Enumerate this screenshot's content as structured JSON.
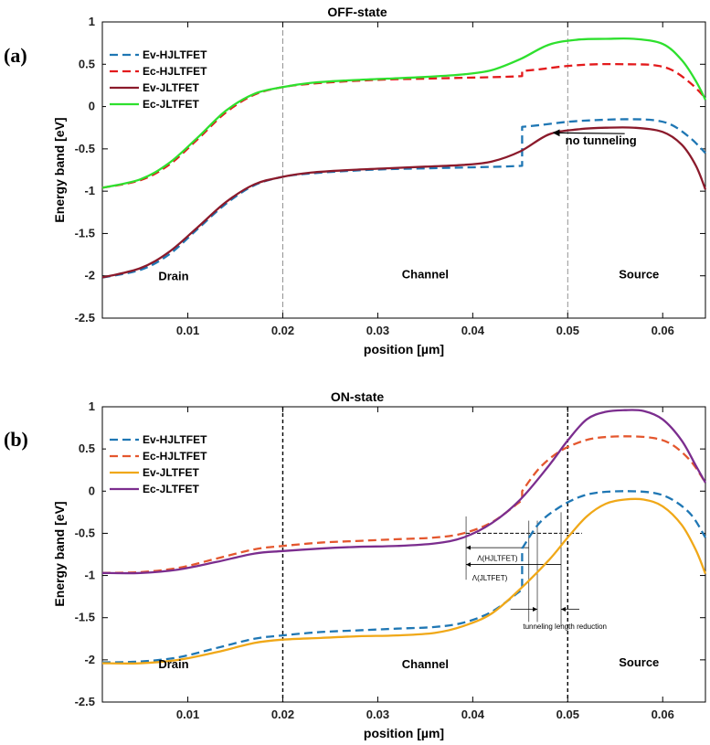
{
  "chart_data": [
    {
      "panel_label": "(a)",
      "type": "line",
      "title": "OFF-state",
      "xlabel": "position [µm]",
      "ylabel": "Energy band [eV]",
      "xlim": [
        0.001,
        0.0645
      ],
      "ylim": [
        -2.5,
        1
      ],
      "xticks": [
        "0.01",
        "0.02",
        "0.03",
        "0.04",
        "0.05",
        "0.06"
      ],
      "xtick_values": [
        0.01,
        0.02,
        0.03,
        0.04,
        0.05,
        0.06
      ],
      "yticks": [
        "-2.5",
        "-2",
        "-1.5",
        "-1",
        "-0.5",
        "0",
        "0.5",
        "1"
      ],
      "ytick_values": [
        -2.5,
        -2,
        -1.5,
        -1,
        -0.5,
        0,
        0.5,
        1
      ],
      "grid": false,
      "legend_position": "top-left",
      "vlines": [
        0.02,
        0.05
      ],
      "region_labels": [
        {
          "text": "Drain",
          "x": 0.0085,
          "y": -2.05
        },
        {
          "text": "Channel",
          "x": 0.035,
          "y": -2.03
        },
        {
          "text": "Source",
          "x": 0.0575,
          "y": -2.03
        }
      ],
      "annotation": {
        "text": "no tunneling",
        "x": 0.0535,
        "y": -0.45,
        "arrow_from": [
          0.056,
          -0.32
        ],
        "arrow_to": [
          0.0485,
          -0.31
        ]
      },
      "series": [
        {
          "name": "Ev-HJLTFET",
          "color": "#1f77b4",
          "dash": "dashed",
          "x": [
            0.001,
            0.005,
            0.008,
            0.011,
            0.014,
            0.017,
            0.02,
            0.023,
            0.027,
            0.031,
            0.035,
            0.039,
            0.043,
            0.0452,
            0.0452,
            0.047,
            0.05,
            0.053,
            0.056,
            0.059,
            0.061,
            0.063,
            0.0645
          ],
          "y": [
            -2.02,
            -1.93,
            -1.75,
            -1.45,
            -1.15,
            -0.93,
            -0.83,
            -0.79,
            -0.76,
            -0.74,
            -0.73,
            -0.72,
            -0.71,
            -0.7,
            -0.24,
            -0.22,
            -0.18,
            -0.16,
            -0.15,
            -0.16,
            -0.22,
            -0.38,
            -0.55
          ]
        },
        {
          "name": "Ec-HJLTFET",
          "color": "#e31a1c",
          "dash": "dashed",
          "x": [
            0.001,
            0.005,
            0.008,
            0.011,
            0.014,
            0.017,
            0.02,
            0.023,
            0.027,
            0.031,
            0.035,
            0.039,
            0.043,
            0.0452,
            0.0452,
            0.047,
            0.05,
            0.053,
            0.056,
            0.059,
            0.061,
            0.063,
            0.0645
          ],
          "y": [
            -0.96,
            -0.87,
            -0.69,
            -0.39,
            -0.07,
            0.14,
            0.23,
            0.27,
            0.3,
            0.32,
            0.33,
            0.34,
            0.35,
            0.36,
            0.42,
            0.44,
            0.48,
            0.5,
            0.5,
            0.49,
            0.43,
            0.27,
            0.1
          ]
        },
        {
          "name": "Ev-JLTFET",
          "color": "#8b1a2b",
          "dash": "solid",
          "x": [
            0.001,
            0.005,
            0.008,
            0.011,
            0.014,
            0.017,
            0.02,
            0.023,
            0.027,
            0.031,
            0.035,
            0.039,
            0.042,
            0.045,
            0.048,
            0.051,
            0.054,
            0.057,
            0.06,
            0.062,
            0.0635,
            0.0645
          ],
          "y": [
            -2.02,
            -1.91,
            -1.72,
            -1.43,
            -1.13,
            -0.92,
            -0.83,
            -0.78,
            -0.75,
            -0.73,
            -0.71,
            -0.69,
            -0.65,
            -0.53,
            -0.33,
            -0.27,
            -0.25,
            -0.25,
            -0.3,
            -0.45,
            -0.7,
            -0.98
          ]
        },
        {
          "name": "Ec-JLTFET",
          "color": "#2ee02e",
          "dash": "solid",
          "x": [
            0.001,
            0.005,
            0.008,
            0.011,
            0.014,
            0.017,
            0.02,
            0.023,
            0.027,
            0.031,
            0.035,
            0.039,
            0.042,
            0.045,
            0.048,
            0.051,
            0.054,
            0.057,
            0.06,
            0.062,
            0.0635,
            0.0645
          ],
          "y": [
            -0.96,
            -0.86,
            -0.67,
            -0.37,
            -0.05,
            0.15,
            0.23,
            0.28,
            0.31,
            0.33,
            0.35,
            0.38,
            0.43,
            0.56,
            0.73,
            0.79,
            0.8,
            0.8,
            0.74,
            0.55,
            0.3,
            0.08
          ]
        }
      ]
    },
    {
      "panel_label": "(b)",
      "type": "line",
      "title": "ON-state",
      "xlabel": "position [µm]",
      "ylabel": "Energy band [eV]",
      "xlim": [
        0.001,
        0.0645
      ],
      "ylim": [
        -2.5,
        1
      ],
      "xticks": [
        "0.01",
        "0.02",
        "0.03",
        "0.04",
        "0.05",
        "0.06"
      ],
      "xtick_values": [
        0.01,
        0.02,
        0.03,
        0.04,
        0.05,
        0.06
      ],
      "yticks": [
        "-2.5",
        "-2",
        "-1.5",
        "-1",
        "-0.5",
        "0",
        "0.5",
        "1"
      ],
      "ytick_values": [
        -2.5,
        -2,
        -1.5,
        -1,
        -0.5,
        0,
        0.5,
        1
      ],
      "grid": false,
      "legend_position": "top-left",
      "vlines": [
        0.02,
        0.05
      ],
      "region_labels": [
        {
          "text": "Drain",
          "x": 0.0085,
          "y": -2.1
        },
        {
          "text": "Channel",
          "x": 0.035,
          "y": -2.1
        },
        {
          "text": "Source",
          "x": 0.0575,
          "y": -2.08
        }
      ],
      "lambda_labels": {
        "hjltfet": "Λ(HJLTFET)",
        "jltfet": "Λ(JLTFET)",
        "reduction": "tunneling length reduction"
      },
      "series": [
        {
          "name": "Ev-HJLTFET",
          "color": "#1f77b4",
          "dash": "dashed",
          "x": [
            0.001,
            0.005,
            0.009,
            0.013,
            0.017,
            0.02,
            0.024,
            0.028,
            0.032,
            0.036,
            0.039,
            0.042,
            0.0448,
            0.0452,
            0.0452,
            0.047,
            0.049,
            0.051,
            0.053,
            0.056,
            0.059,
            0.061,
            0.063,
            0.0645
          ],
          "y": [
            -2.03,
            -2.02,
            -1.97,
            -1.86,
            -1.75,
            -1.71,
            -1.67,
            -1.65,
            -1.63,
            -1.61,
            -1.56,
            -1.43,
            -1.2,
            -1.16,
            -0.68,
            -0.38,
            -0.2,
            -0.08,
            -0.02,
            0.0,
            -0.02,
            -0.1,
            -0.28,
            -0.55
          ]
        },
        {
          "name": "Ec-HJLTFET",
          "color": "#e4572e",
          "dash": "dashed",
          "x": [
            0.001,
            0.005,
            0.009,
            0.013,
            0.017,
            0.02,
            0.024,
            0.028,
            0.032,
            0.036,
            0.039,
            0.042,
            0.0448,
            0.0452,
            0.0452,
            0.047,
            0.049,
            0.051,
            0.053,
            0.056,
            0.059,
            0.061,
            0.063,
            0.0645
          ],
          "y": [
            -0.97,
            -0.96,
            -0.91,
            -0.8,
            -0.69,
            -0.65,
            -0.61,
            -0.59,
            -0.57,
            -0.55,
            -0.5,
            -0.37,
            -0.14,
            -0.1,
            0.0,
            0.27,
            0.46,
            0.57,
            0.63,
            0.65,
            0.63,
            0.55,
            0.35,
            0.1
          ]
        },
        {
          "name": "Ev-JLTFET",
          "color": "#f0a818",
          "dash": "solid",
          "x": [
            0.001,
            0.005,
            0.009,
            0.013,
            0.017,
            0.02,
            0.024,
            0.028,
            0.032,
            0.036,
            0.039,
            0.042,
            0.045,
            0.048,
            0.05,
            0.052,
            0.054,
            0.056,
            0.058,
            0.06,
            0.062,
            0.0635,
            0.0645
          ],
          "y": [
            -2.04,
            -2.04,
            -2.0,
            -1.91,
            -1.8,
            -1.76,
            -1.74,
            -1.72,
            -1.71,
            -1.68,
            -1.6,
            -1.45,
            -1.16,
            -0.82,
            -0.55,
            -0.3,
            -0.15,
            -0.1,
            -0.1,
            -0.18,
            -0.4,
            -0.7,
            -0.98
          ]
        },
        {
          "name": "Ec-JLTFET",
          "color": "#7b2d8e",
          "dash": "solid",
          "x": [
            0.001,
            0.005,
            0.009,
            0.013,
            0.017,
            0.02,
            0.024,
            0.028,
            0.032,
            0.036,
            0.039,
            0.042,
            0.045,
            0.048,
            0.05,
            0.052,
            0.054,
            0.056,
            0.058,
            0.06,
            0.062,
            0.0635,
            0.0645
          ],
          "y": [
            -0.97,
            -0.97,
            -0.93,
            -0.84,
            -0.74,
            -0.71,
            -0.68,
            -0.66,
            -0.65,
            -0.62,
            -0.55,
            -0.38,
            -0.1,
            0.3,
            0.6,
            0.85,
            0.94,
            0.96,
            0.95,
            0.85,
            0.6,
            0.3,
            0.1
          ]
        }
      ]
    }
  ]
}
